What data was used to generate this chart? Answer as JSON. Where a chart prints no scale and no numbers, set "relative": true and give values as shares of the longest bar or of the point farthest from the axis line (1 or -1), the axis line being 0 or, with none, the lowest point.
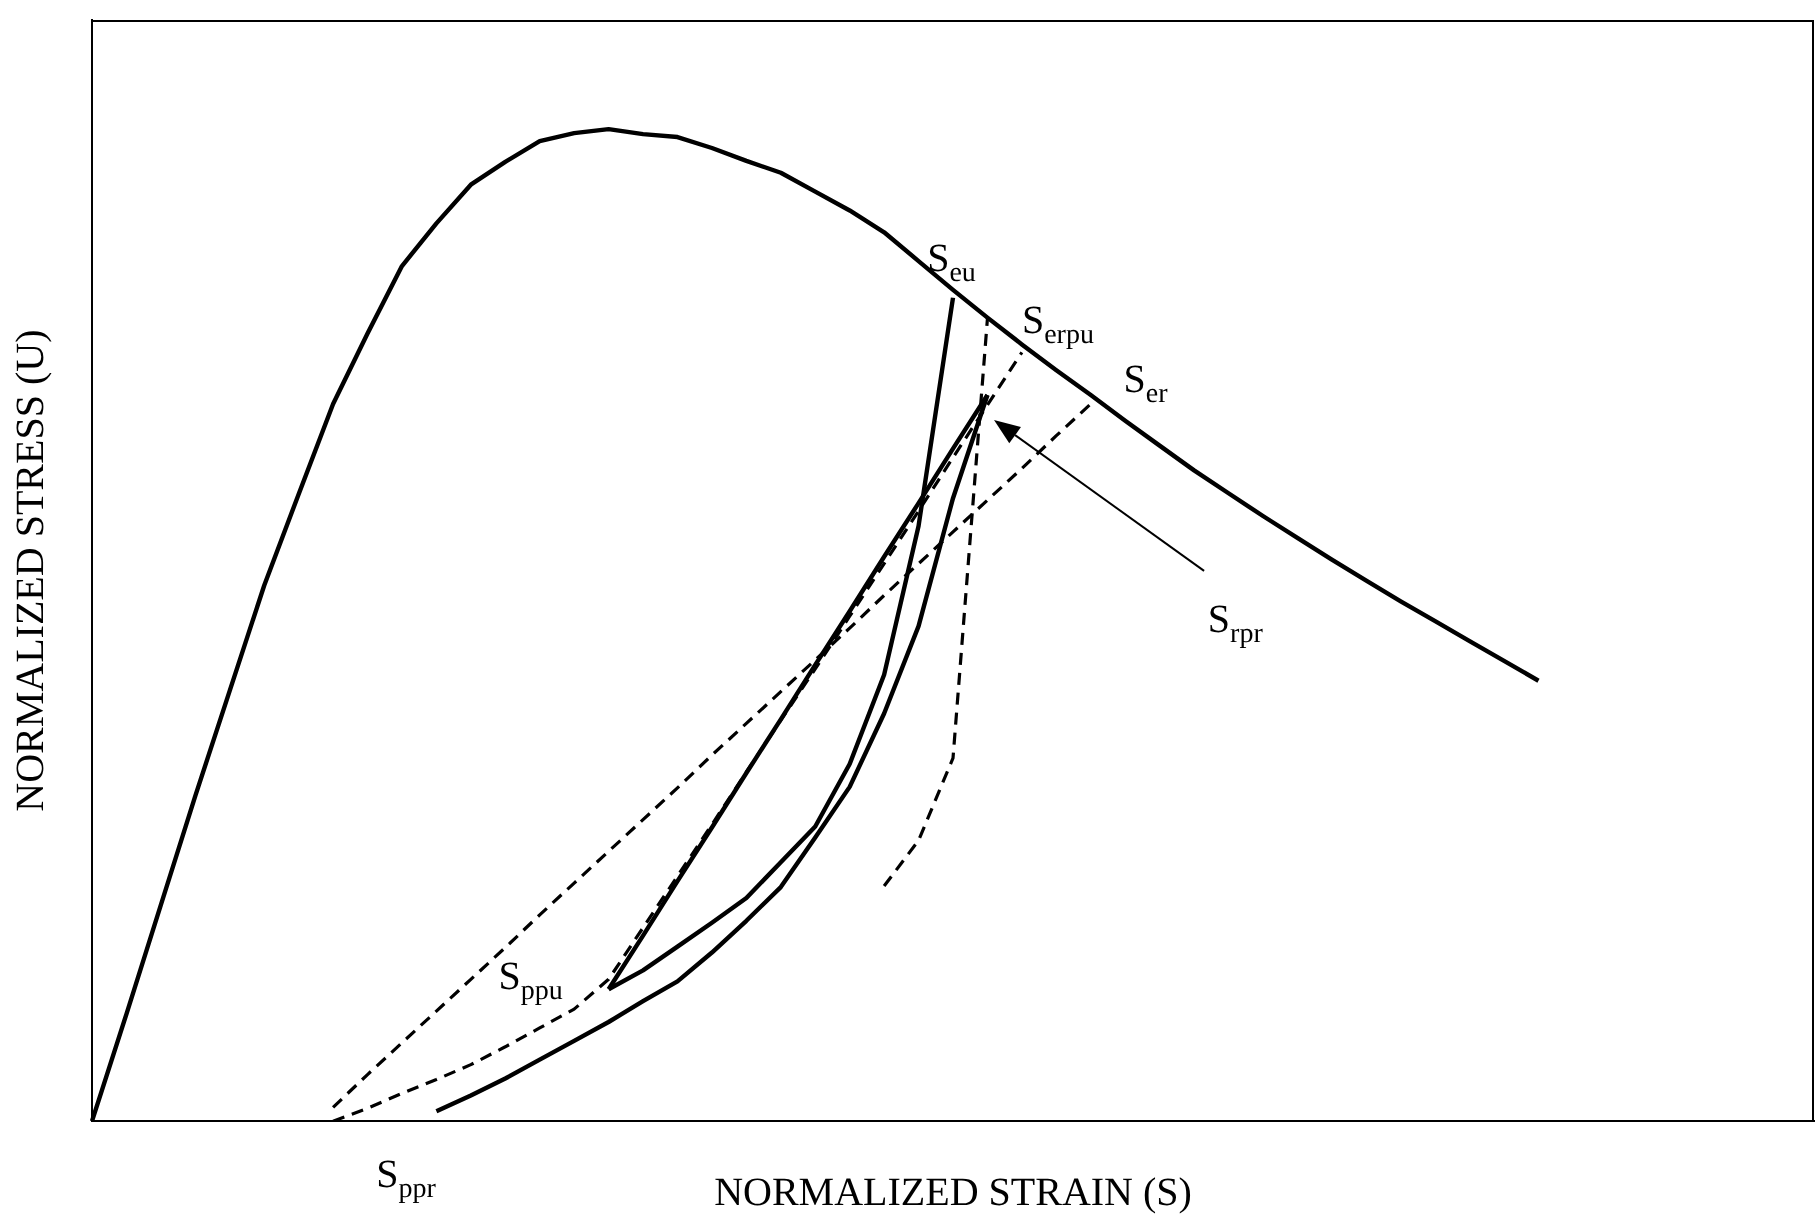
{
  "chart_data": {
    "type": "line",
    "relative": true,
    "xlabel": "NORMALIZED STRAIN (S)",
    "ylabel": "NORMALIZED STRESS (U)",
    "marker": "none",
    "categories": [
      null,
      null,
      null,
      null,
      null,
      null,
      null,
      null,
      null,
      null,
      null,
      null,
      null,
      null,
      null,
      null,
      null,
      null,
      null,
      null,
      null,
      null,
      null,
      null,
      null,
      null,
      null,
      null,
      null,
      null,
      null,
      null,
      null,
      null,
      null,
      null,
      null,
      null,
      null,
      null,
      null,
      null,
      null,
      null,
      null,
      null,
      null,
      null,
      null,
      null,
      null
    ],
    "series": [
      {
        "color": "#000000",
        "line_style": "solid",
        "values": [
          0,
          0.108,
          0.218,
          0.328,
          0.434,
          0.54,
          0.632,
          0.723,
          0.794,
          0.862,
          0.905,
          0.944,
          0.967,
          0.988,
          0.996,
          1,
          0.995,
          0.992,
          0.981,
          0.968,
          0.956,
          0.937,
          0.918,
          0.896,
          0.867,
          0.838,
          0.81,
          0.783,
          0.757,
          0.732,
          0.706,
          0.681,
          0.656,
          0.633,
          0.61,
          0.588,
          0.566,
          0.545,
          0.524,
          0.504,
          0.484,
          0.464,
          0.444,
          null,
          null,
          null,
          null,
          null,
          null,
          null,
          null
        ]
      },
      {
        "color": "#000000",
        "line_style": "solid",
        "values": [
          null,
          null,
          null,
          null,
          null,
          null,
          null,
          null,
          null,
          null,
          null,
          null,
          null,
          null,
          null,
          0.133,
          0.152,
          0.176,
          0.2,
          0.225,
          0.261,
          0.297,
          0.36,
          0.45,
          0.6,
          0.83,
          null,
          null,
          null,
          null,
          null,
          null,
          null,
          null,
          null,
          null,
          null,
          null,
          null,
          null,
          null,
          null,
          null,
          null,
          null,
          null,
          null,
          null,
          null,
          null,
          null
        ]
      },
      {
        "color": "#000000",
        "line_style": "solid",
        "values": [
          null,
          null,
          null,
          null,
          null,
          null,
          null,
          null,
          null,
          null,
          null,
          null,
          null,
          null,
          null,
          0.133,
          0.187,
          0.242,
          0.296,
          0.351,
          0.405,
          0.46,
          0.514,
          0.569,
          0.623,
          0.678,
          0.732,
          null,
          null,
          null,
          null,
          null,
          null,
          null,
          null,
          null,
          null,
          null,
          null,
          null,
          null,
          null,
          null,
          null,
          null,
          null,
          null,
          null,
          null,
          null,
          null
        ]
      },
      {
        "color": "#000000",
        "line_style": "solid",
        "values": [
          null,
          null,
          null,
          null,
          null,
          null,
          null,
          null,
          null,
          null,
          0.01,
          0.026,
          0.043,
          0.062,
          0.081,
          0.1,
          0.121,
          0.141,
          0.17,
          0.202,
          0.236,
          0.286,
          0.337,
          0.411,
          0.499,
          0.628,
          0.732,
          null,
          null,
          null,
          null,
          null,
          null,
          null,
          null,
          null,
          null,
          null,
          null,
          null,
          null,
          null,
          null,
          null,
          null,
          null,
          null,
          null,
          null,
          null,
          null
        ]
      },
      {
        "color": "#000000",
        "line_style": "dashed",
        "values": [
          null,
          null,
          null,
          null,
          null,
          null,
          null,
          0.014,
          0.047,
          0.079,
          0.111,
          0.143,
          0.175,
          0.208,
          0.24,
          0.272,
          0.304,
          0.336,
          0.369,
          0.401,
          0.433,
          0.465,
          0.497,
          0.53,
          0.562,
          0.594,
          0.626,
          0.658,
          0.691,
          0.723,
          null,
          null,
          null,
          null,
          null,
          null,
          null,
          null,
          null,
          null,
          null,
          null,
          null,
          null,
          null,
          null,
          null,
          null,
          null,
          null,
          null
        ]
      },
      {
        "color": "#000000",
        "line_style": "dashed",
        "values": [
          null,
          null,
          null,
          null,
          null,
          null,
          null,
          0,
          0.013,
          0.028,
          0.042,
          0.057,
          0.075,
          0.094,
          0.113,
          0.143,
          0.195,
          0.247,
          0.299,
          0.352,
          0.404,
          0.456,
          0.509,
          0.562,
          0.615,
          0.669,
          0.722,
          0.775,
          null,
          null,
          null,
          null,
          null,
          null,
          null,
          null,
          null,
          null,
          null,
          null,
          null,
          null,
          null,
          null,
          null,
          null,
          null,
          null,
          null,
          null,
          null
        ]
      },
      {
        "color": "#000000",
        "line_style": "dashed",
        "values": [
          null,
          null,
          null,
          null,
          null,
          null,
          null,
          null,
          null,
          null,
          null,
          null,
          null,
          null,
          null,
          null,
          null,
          null,
          null,
          null,
          null,
          null,
          null,
          0.237,
          0.283,
          0.366,
          0.809,
          null,
          null,
          null,
          null,
          null,
          null,
          null,
          null,
          null,
          null,
          null,
          null,
          null,
          null,
          null,
          null,
          null,
          null,
          null,
          null,
          null,
          null,
          null,
          null
        ]
      }
    ],
    "annotations": [
      "S$_{eu}$",
      "S$_{erpu}$",
      "S$_{er}$",
      "S$_{rpr}$",
      "S$_{ppu}$",
      "S$_{ppr}$"
    ]
  }
}
